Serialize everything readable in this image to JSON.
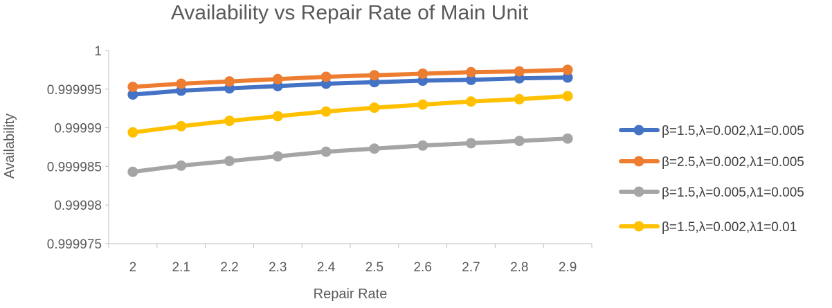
{
  "chart_data": {
    "type": "line",
    "title": "Availability vs Repair Rate of Main Unit",
    "xlabel": "Repair Rate",
    "ylabel": "Availability",
    "categories": [
      "2",
      "2.1",
      "2.2",
      "2.3",
      "2.4",
      "2.5",
      "2.6",
      "2.7",
      "2.8",
      "2.9"
    ],
    "x": [
      2,
      2.1,
      2.2,
      2.3,
      2.4,
      2.5,
      2.6,
      2.7,
      2.8,
      2.9
    ],
    "ylim": [
      0.999975,
      1
    ],
    "yticks": [
      "0.999975",
      "0.99998",
      "0.999985",
      "0.99999",
      "0.999995",
      "1"
    ],
    "ytick_values": [
      0.999975,
      0.99998,
      0.999985,
      0.99999,
      0.999995,
      1
    ],
    "grid": false,
    "legend_position": "right",
    "series": [
      {
        "name": "β=1.5,λ=0.002,λ1=0.005",
        "color": "#4472C4",
        "values": [
          0.9999943,
          0.9999948,
          0.9999951,
          0.9999954,
          0.9999957,
          0.9999959,
          0.9999961,
          0.9999962,
          0.9999964,
          0.9999965
        ]
      },
      {
        "name": "β=2.5,λ=0.002,λ1=0.005",
        "color": "#ED7D31",
        "values": [
          0.9999953,
          0.9999957,
          0.999996,
          0.9999963,
          0.9999966,
          0.9999968,
          0.999997,
          0.9999972,
          0.9999973,
          0.9999975
        ]
      },
      {
        "name": "β=1.5,λ=0.005,λ1=0.005",
        "color": "#A5A5A5",
        "values": [
          0.9999843,
          0.9999851,
          0.9999857,
          0.9999863,
          0.9999869,
          0.9999873,
          0.9999877,
          0.999988,
          0.9999883,
          0.9999886
        ]
      },
      {
        "name": "β=1.5,λ=0.002,λ1=0.01",
        "color": "#FFC000",
        "values": [
          0.9999894,
          0.9999902,
          0.9999909,
          0.9999915,
          0.9999921,
          0.9999926,
          0.999993,
          0.9999934,
          0.9999937,
          0.9999941
        ]
      }
    ]
  }
}
